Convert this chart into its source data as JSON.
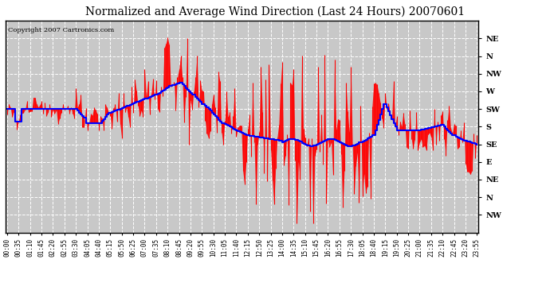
{
  "title": "Normalized and Average Wind Direction (Last 24 Hours) 20070601",
  "copyright": "Copyright 2007 Cartronics.com",
  "background_color": "#ffffff",
  "plot_bg_color": "#c8c8c8",
  "grid_color": "#ffffff",
  "bar_color": "#ff0000",
  "line_color": "#0000ff",
  "ytick_labels": [
    "NE",
    "N",
    "NW",
    "W",
    "SW",
    "S",
    "SE",
    "E",
    "NE",
    "N",
    "NW"
  ],
  "ytick_values": [
    11,
    10,
    9,
    8,
    7,
    6,
    5,
    4,
    3,
    2,
    1
  ],
  "ylim_min": 0,
  "ylim_max": 12,
  "xtick_labels": [
    "00:00",
    "00:35",
    "01:10",
    "01:45",
    "02:20",
    "02:55",
    "03:30",
    "04:05",
    "04:40",
    "05:15",
    "05:50",
    "06:25",
    "07:00",
    "07:35",
    "08:10",
    "08:45",
    "09:20",
    "09:55",
    "10:30",
    "11:05",
    "11:40",
    "12:15",
    "12:50",
    "13:25",
    "14:00",
    "14:35",
    "15:10",
    "15:45",
    "16:20",
    "16:55",
    "17:30",
    "18:05",
    "18:40",
    "19:15",
    "19:50",
    "20:25",
    "21:00",
    "21:35",
    "22:10",
    "22:45",
    "23:20",
    "23:55"
  ],
  "n_points": 288,
  "title_fontsize": 10,
  "copyright_fontsize": 6,
  "ytick_fontsize": 7,
  "xtick_fontsize": 5.5
}
